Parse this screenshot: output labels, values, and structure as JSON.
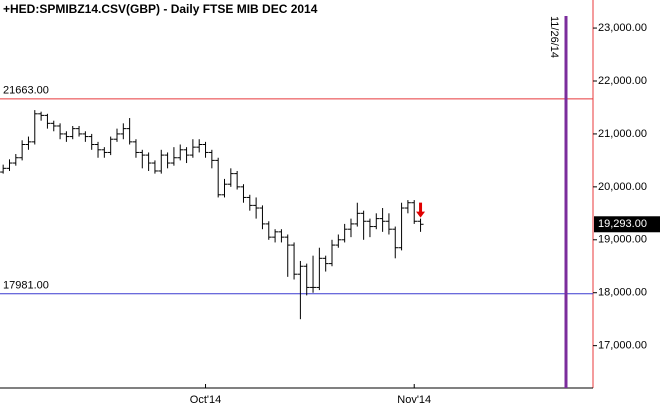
{
  "chart_data": {
    "type": "ohlc",
    "title": "+HED:SPMIBZ14.CSV(GBP) - Daily  FTSE MIB DEC 2014",
    "categories": [
      null,
      null,
      null,
      null,
      null,
      null,
      null,
      null,
      null,
      null,
      null,
      null,
      null,
      null,
      null,
      null,
      null,
      null,
      null,
      null,
      null,
      null,
      null,
      null,
      null,
      null,
      null,
      null,
      null,
      null,
      null,
      null,
      "Oct'14",
      null,
      null,
      null,
      null,
      null,
      null,
      null,
      null,
      null,
      null,
      null,
      null,
      null,
      null,
      null,
      null,
      null,
      null,
      null,
      null,
      null,
      null,
      null,
      null,
      null,
      null,
      null,
      null,
      null,
      null,
      null,
      null,
      "Nov'14",
      null,
      null,
      null,
      null,
      null,
      null,
      null,
      null,
      null,
      null,
      null,
      null,
      null,
      null,
      null,
      null,
      null,
      null,
      null,
      null,
      null,
      null,
      null,
      "11/26/14"
    ],
    "open": [
      20280,
      20350,
      20450,
      20550,
      20800,
      20850,
      21380,
      21350,
      21200,
      21150,
      21000,
      20950,
      21100,
      21000,
      20950,
      20800,
      20700,
      20650,
      20900,
      21000,
      21100,
      20850,
      20650,
      20600,
      20450,
      20300,
      20600,
      20450,
      20550,
      20700,
      20600,
      20750,
      20800,
      20650,
      20500,
      19850,
      20050,
      20250,
      20000,
      19800,
      19650,
      19600,
      19300,
      19050,
      19150,
      19050,
      18900,
      18350,
      18500,
      18100,
      18100,
      18650,
      18550,
      18900,
      19000,
      19200,
      19300,
      19500,
      19350,
      19250,
      19400,
      19350,
      19200,
      18850,
      19600,
      19700,
      19350,
      null,
      null,
      null,
      null,
      null,
      null,
      null,
      null,
      null,
      null,
      null,
      null,
      null,
      null,
      null,
      null,
      null,
      null,
      null,
      null,
      null,
      null,
      null
    ],
    "high": [
      20420,
      20520,
      20620,
      20880,
      20950,
      21450,
      21420,
      21380,
      21250,
      21200,
      21050,
      21150,
      21150,
      21050,
      21000,
      20850,
      20750,
      20950,
      21100,
      21200,
      21300,
      20900,
      20700,
      20650,
      20500,
      20700,
      20650,
      20750,
      20800,
      20750,
      20900,
      20900,
      20850,
      20700,
      20550,
      20150,
      20350,
      20300,
      20050,
      19850,
      19800,
      19650,
      19350,
      19200,
      19200,
      19100,
      18950,
      18600,
      18550,
      18700,
      18850,
      18700,
      19000,
      19100,
      19300,
      19400,
      19700,
      19550,
      19400,
      19500,
      19600,
      19500,
      19250,
      19700,
      19750,
      19750,
      19400,
      null,
      null,
      null,
      null,
      null,
      null,
      null,
      null,
      null,
      null,
      null,
      null,
      null,
      null,
      null,
      null,
      null,
      null,
      null,
      null,
      null,
      null,
      null
    ],
    "low": [
      20250,
      20300,
      20400,
      20500,
      20700,
      20800,
      21250,
      21100,
      21050,
      20900,
      20850,
      20900,
      20950,
      20850,
      20700,
      20550,
      20550,
      20600,
      20850,
      20900,
      20800,
      20550,
      20350,
      20300,
      20250,
      20250,
      20350,
      20400,
      20500,
      20450,
      20550,
      20650,
      20550,
      20350,
      19800,
      19800,
      20000,
      19950,
      19700,
      19550,
      19400,
      19200,
      19000,
      18950,
      18950,
      18300,
      18250,
      17500,
      17950,
      18000,
      18050,
      18400,
      18500,
      18850,
      18950,
      19050,
      19250,
      19000,
      19050,
      19200,
      19150,
      19100,
      18650,
      18800,
      19500,
      19300,
      19150,
      null,
      null,
      null,
      null,
      null,
      null,
      null,
      null,
      null,
      null,
      null,
      null,
      null,
      null,
      null,
      null,
      null,
      null,
      null,
      null,
      null,
      null,
      null
    ],
    "close": [
      20350,
      20450,
      20550,
      20800,
      20850,
      21380,
      21350,
      21200,
      21150,
      21000,
      20950,
      21100,
      21000,
      20950,
      20800,
      20700,
      20650,
      20900,
      21000,
      21100,
      20850,
      20650,
      20600,
      20450,
      20300,
      20600,
      20450,
      20550,
      20700,
      20600,
      20750,
      20800,
      20650,
      20500,
      19850,
      20050,
      20250,
      20000,
      19800,
      19650,
      19600,
      19300,
      19050,
      19150,
      19050,
      18900,
      18350,
      18500,
      18100,
      18100,
      18650,
      18550,
      18900,
      19000,
      19200,
      19300,
      19500,
      19350,
      19250,
      19400,
      19350,
      19200,
      18850,
      19600,
      19700,
      19350,
      19293,
      null,
      null,
      null,
      null,
      null,
      null,
      null,
      null,
      null,
      null,
      null,
      null,
      null,
      null,
      null,
      null,
      null,
      null,
      null,
      null,
      null,
      null,
      null
    ],
    "color": "#000000",
    "ylim": [
      16200,
      23530
    ],
    "yticks": [
      {
        "value": 17000,
        "label": "17,000.00"
      },
      {
        "value": 18000,
        "label": "18,000.00"
      },
      {
        "value": 19000,
        "label": "19,000.00"
      },
      {
        "value": 20000,
        "label": "20,000.00"
      },
      {
        "value": 21000,
        "label": "21,000.00"
      },
      {
        "value": 22000,
        "label": "22,000.00"
      },
      {
        "value": 23000,
        "label": "23,000.00"
      }
    ],
    "hlines": [
      {
        "value": 21663,
        "label": "21663.00",
        "color": "#e8393b"
      },
      {
        "value": 17981,
        "label": "17981.00",
        "color": "#3a3ad0"
      }
    ],
    "last_price": {
      "value": 19293,
      "label": "19,293.00"
    },
    "vline_color": "#7b2d9c",
    "axis_line_color": "#e8393b",
    "arrow_color": "#e00000"
  }
}
